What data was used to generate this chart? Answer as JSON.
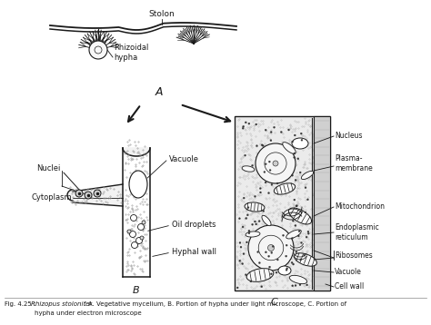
{
  "bg_color": "#ffffff",
  "line_color": "#1a1a1a",
  "label_A": "A",
  "label_B": "B",
  "label_C": "C",
  "stolon_label": "Stolon",
  "rhizoidal_label": "Rhizoidal\nhypha",
  "nuclei_label": "Nuclei",
  "cytoplasm_label": "Cytoplasm",
  "vacuole_label_B": "Vacuole",
  "oil_droplets_label": "Oil droplets",
  "hyphal_wall_label": "Hyphal wall",
  "nucleus_label": "Nucleus",
  "plasma_membrane_label": "Plasma-\nmembrane",
  "mitochondrion_label": "Mitochondrion",
  "endoplasmic_label": "Endoplasmic\nreticulum",
  "ribosomes_label": "Ribosomes",
  "vacuole_label_C": "Vacuole",
  "cell_wall_label": "Cell wall",
  "caption_prefix": "Fig. 4.25 :  ",
  "caption_italic": "Rhizopus stolonifer",
  "caption_rest": " : A. Vegetative mycelium, B. Portion of hypha under light microscope, C. Portion of",
  "caption_line2": "hypha under electron microscope"
}
